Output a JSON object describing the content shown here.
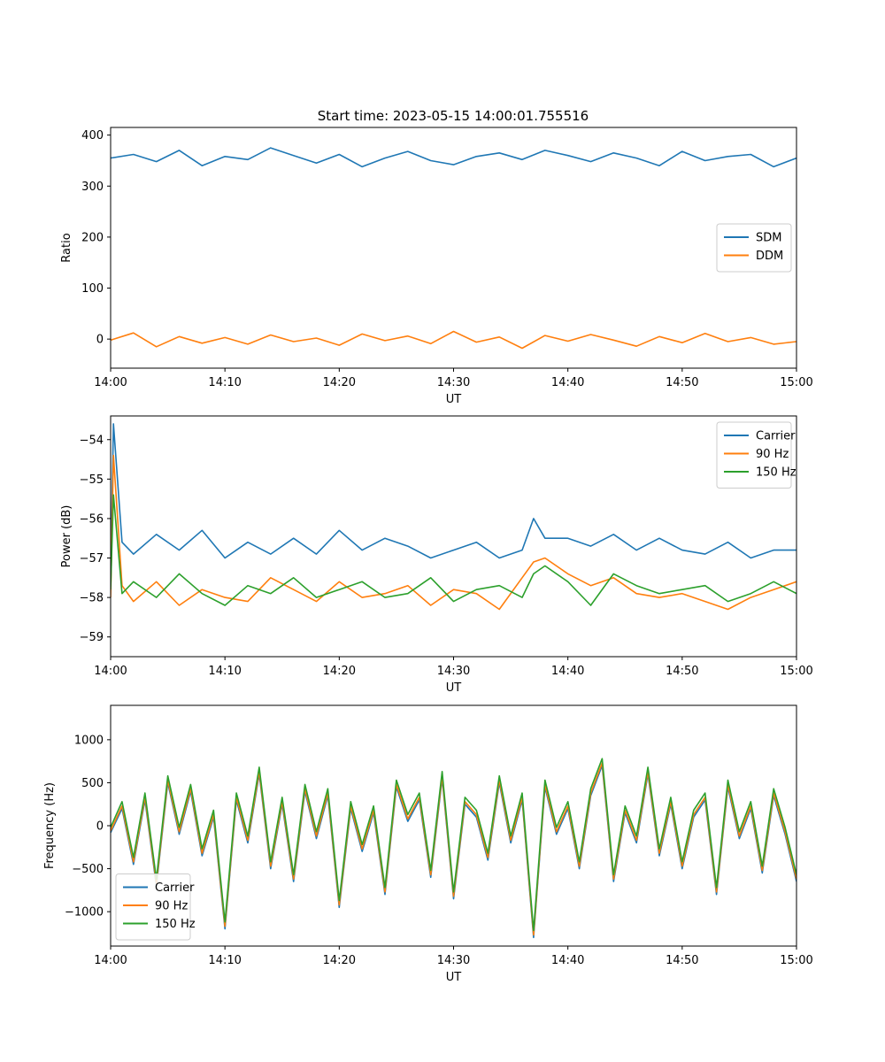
{
  "figure_title": "Start time: 2023-05-15 14:00:01.755516",
  "chart_data": [
    {
      "type": "line",
      "xlabel": "UT",
      "ylabel": "Ratio",
      "xlim": [
        "14:00",
        "15:00"
      ],
      "xticks": [
        "14:00",
        "14:10",
        "14:20",
        "14:30",
        "14:40",
        "14:50",
        "15:00"
      ],
      "ylim": [
        -57,
        415
      ],
      "yticks": [
        0,
        100,
        200,
        300,
        400
      ],
      "grid": false,
      "legend_position": "center-right",
      "series": [
        {
          "name": "SDM",
          "color": "#1f77b4",
          "x": [
            "14:00",
            "14:02",
            "14:04",
            "14:06",
            "14:08",
            "14:10",
            "14:12",
            "14:14",
            "14:16",
            "14:18",
            "14:20",
            "14:22",
            "14:24",
            "14:26",
            "14:28",
            "14:30",
            "14:32",
            "14:34",
            "14:36",
            "14:38",
            "14:40",
            "14:42",
            "14:44",
            "14:46",
            "14:48",
            "14:50",
            "14:52",
            "14:54",
            "14:56",
            "14:58",
            "15:00"
          ],
          "values": [
            355,
            362,
            348,
            370,
            340,
            358,
            352,
            375,
            360,
            345,
            362,
            338,
            355,
            368,
            350,
            342,
            358,
            365,
            352,
            370,
            360,
            348,
            365,
            355,
            340,
            368,
            350,
            358,
            362,
            338,
            355
          ]
        },
        {
          "name": "DDM",
          "color": "#ff7f0e",
          "x": [
            "14:00",
            "14:02",
            "14:04",
            "14:06",
            "14:08",
            "14:10",
            "14:12",
            "14:14",
            "14:16",
            "14:18",
            "14:20",
            "14:22",
            "14:24",
            "14:26",
            "14:28",
            "14:30",
            "14:32",
            "14:34",
            "14:36",
            "14:38",
            "14:40",
            "14:42",
            "14:44",
            "14:46",
            "14:48",
            "14:50",
            "14:52",
            "14:54",
            "14:56",
            "14:58",
            "15:00"
          ],
          "values": [
            -2,
            12,
            -15,
            5,
            -8,
            3,
            -10,
            8,
            -5,
            2,
            -12,
            10,
            -3,
            6,
            -9,
            15,
            -6,
            4,
            -18,
            7,
            -4,
            9,
            -2,
            -14,
            5,
            -7,
            11,
            -5,
            3,
            -10,
            -5
          ]
        }
      ]
    },
    {
      "type": "line",
      "xlabel": "UT",
      "ylabel": "Power (dB)",
      "xlim": [
        "14:00",
        "15:00"
      ],
      "xticks": [
        "14:00",
        "14:10",
        "14:20",
        "14:30",
        "14:40",
        "14:50",
        "15:00"
      ],
      "ylim": [
        -59.5,
        -53.4
      ],
      "yticks": [
        -59,
        -58,
        -57,
        -56,
        -55,
        -54
      ],
      "grid": false,
      "legend_position": "top-right",
      "series": [
        {
          "name": "Carrier",
          "color": "#1f77b4",
          "x": [
            "14:00",
            "14:00:15",
            "14:01",
            "14:02",
            "14:04",
            "14:06",
            "14:08",
            "14:10",
            "14:12",
            "14:14",
            "14:16",
            "14:18",
            "14:20",
            "14:22",
            "14:24",
            "14:26",
            "14:28",
            "14:30",
            "14:32",
            "14:34",
            "14:36",
            "14:37",
            "14:38",
            "14:40",
            "14:42",
            "14:44",
            "14:46",
            "14:48",
            "14:50",
            "14:52",
            "14:54",
            "14:56",
            "14:58",
            "15:00"
          ],
          "values": [
            -57.5,
            -53.6,
            -56.6,
            -56.9,
            -56.4,
            -56.8,
            -56.3,
            -57.0,
            -56.6,
            -56.9,
            -56.5,
            -56.9,
            -56.3,
            -56.8,
            -56.5,
            -56.7,
            -57.0,
            -56.8,
            -56.6,
            -57.0,
            -56.8,
            -56.0,
            -56.5,
            -56.5,
            -56.7,
            -56.4,
            -56.8,
            -56.5,
            -56.8,
            -56.9,
            -56.6,
            -57.0,
            -56.8,
            -56.8
          ]
        },
        {
          "name": "90 Hz",
          "color": "#ff7f0e",
          "x": [
            "14:00",
            "14:00:15",
            "14:01",
            "14:02",
            "14:04",
            "14:06",
            "14:08",
            "14:10",
            "14:12",
            "14:14",
            "14:16",
            "14:18",
            "14:20",
            "14:22",
            "14:24",
            "14:26",
            "14:28",
            "14:30",
            "14:32",
            "14:34",
            "14:36",
            "14:37",
            "14:38",
            "14:40",
            "14:42",
            "14:44",
            "14:46",
            "14:48",
            "14:50",
            "14:52",
            "14:54",
            "14:56",
            "14:58",
            "15:00"
          ],
          "values": [
            -58.0,
            -54.4,
            -57.7,
            -58.1,
            -57.6,
            -58.2,
            -57.8,
            -58.0,
            -58.1,
            -57.5,
            -57.8,
            -58.1,
            -57.6,
            -58.0,
            -57.9,
            -57.7,
            -58.2,
            -57.8,
            -57.9,
            -58.3,
            -57.5,
            -57.1,
            -57.0,
            -57.4,
            -57.7,
            -57.5,
            -57.9,
            -58.0,
            -57.9,
            -58.1,
            -58.3,
            -58.0,
            -57.8,
            -57.6
          ]
        },
        {
          "name": "150 Hz",
          "color": "#2ca02c",
          "x": [
            "14:00",
            "14:00:15",
            "14:01",
            "14:02",
            "14:04",
            "14:06",
            "14:08",
            "14:10",
            "14:12",
            "14:14",
            "14:16",
            "14:18",
            "14:20",
            "14:22",
            "14:24",
            "14:26",
            "14:28",
            "14:30",
            "14:32",
            "14:34",
            "14:36",
            "14:37",
            "14:38",
            "14:40",
            "14:42",
            "14:44",
            "14:46",
            "14:48",
            "14:50",
            "14:52",
            "14:54",
            "14:56",
            "14:58",
            "15:00"
          ],
          "values": [
            -57.8,
            -55.4,
            -57.9,
            -57.6,
            -58.0,
            -57.4,
            -57.9,
            -58.2,
            -57.7,
            -57.9,
            -57.5,
            -58.0,
            -57.8,
            -57.6,
            -58.0,
            -57.9,
            -57.5,
            -58.1,
            -57.8,
            -57.7,
            -58.0,
            -57.4,
            -57.2,
            -57.6,
            -58.2,
            -57.4,
            -57.7,
            -57.9,
            -57.8,
            -57.7,
            -58.1,
            -57.9,
            -57.6,
            -57.9
          ]
        }
      ]
    },
    {
      "type": "line",
      "xlabel": "UT",
      "ylabel": "Frequency (Hz)",
      "xlim": [
        "14:00",
        "15:00"
      ],
      "xticks": [
        "14:00",
        "14:10",
        "14:20",
        "14:30",
        "14:40",
        "14:50",
        "15:00"
      ],
      "ylim": [
        -1400,
        1400
      ],
      "yticks": [
        -1000,
        -500,
        0,
        500,
        1000
      ],
      "grid": false,
      "legend_position": "bottom-left",
      "series": [
        {
          "name": "Carrier",
          "color": "#1f77b4",
          "x": [
            "14:00",
            "14:01",
            "14:02",
            "14:03",
            "14:04",
            "14:05",
            "14:06",
            "14:07",
            "14:08",
            "14:09",
            "14:10",
            "14:11",
            "14:12",
            "14:13",
            "14:14",
            "14:15",
            "14:16",
            "14:17",
            "14:18",
            "14:19",
            "14:20",
            "14:21",
            "14:22",
            "14:23",
            "14:24",
            "14:25",
            "14:26",
            "14:27",
            "14:28",
            "14:29",
            "14:30",
            "14:31",
            "14:32",
            "14:33",
            "14:34",
            "14:35",
            "14:36",
            "14:37",
            "14:38",
            "14:39",
            "14:40",
            "14:41",
            "14:42",
            "14:43",
            "14:44",
            "14:45",
            "14:46",
            "14:47",
            "14:48",
            "14:49",
            "14:50",
            "14:51",
            "14:52",
            "14:53",
            "14:54",
            "14:55",
            "14:56",
            "14:57",
            "14:58",
            "14:59",
            "15:00"
          ],
          "values": [
            -80,
            200,
            -450,
            300,
            -700,
            500,
            -100,
            400,
            -350,
            100,
            -1200,
            300,
            -200,
            600,
            -500,
            250,
            -650,
            400,
            -150,
            350,
            -950,
            200,
            -300,
            150,
            -800,
            450,
            50,
            300,
            -600,
            550,
            -850,
            250,
            100,
            -400,
            500,
            -200,
            300,
            -1300,
            450,
            -100,
            200,
            -500,
            350,
            700,
            -650,
            150,
            -200,
            600,
            -350,
            250,
            -500,
            100,
            300,
            -800,
            450,
            -150,
            200,
            -550,
            350,
            -100,
            -650
          ]
        },
        {
          "name": "90 Hz",
          "color": "#ff7f0e",
          "x": [
            "14:00",
            "14:01",
            "14:02",
            "14:03",
            "14:04",
            "14:05",
            "14:06",
            "14:07",
            "14:08",
            "14:09",
            "14:10",
            "14:11",
            "14:12",
            "14:13",
            "14:14",
            "14:15",
            "14:16",
            "14:17",
            "14:18",
            "14:19",
            "14:20",
            "14:21",
            "14:22",
            "14:23",
            "14:24",
            "14:25",
            "14:26",
            "14:27",
            "14:28",
            "14:29",
            "14:30",
            "14:31",
            "14:32",
            "14:33",
            "14:34",
            "14:35",
            "14:36",
            "14:37",
            "14:38",
            "14:39",
            "14:40",
            "14:41",
            "14:42",
            "14:43",
            "14:44",
            "14:45",
            "14:46",
            "14:47",
            "14:48",
            "14:49",
            "14:50",
            "14:51",
            "14:52",
            "14:53",
            "14:54",
            "14:55",
            "14:56",
            "14:57",
            "14:58",
            "14:59",
            "15:00"
          ],
          "values": [
            -60,
            230,
            -420,
            330,
            -670,
            530,
            -70,
            430,
            -320,
            130,
            -1170,
            330,
            -170,
            630,
            -470,
            280,
            -620,
            430,
            -120,
            380,
            -920,
            230,
            -270,
            180,
            -770,
            480,
            80,
            330,
            -570,
            580,
            -820,
            280,
            130,
            -370,
            530,
            -170,
            330,
            -1270,
            480,
            -70,
            230,
            -470,
            380,
            730,
            -620,
            180,
            -170,
            630,
            -320,
            280,
            -470,
            130,
            330,
            -770,
            480,
            -120,
            230,
            -520,
            380,
            -70,
            -620
          ]
        },
        {
          "name": "150 Hz",
          "color": "#2ca02c",
          "x": [
            "14:00",
            "14:01",
            "14:02",
            "14:03",
            "14:04",
            "14:05",
            "14:06",
            "14:07",
            "14:08",
            "14:09",
            "14:10",
            "14:11",
            "14:12",
            "14:13",
            "14:14",
            "14:15",
            "14:16",
            "14:17",
            "14:18",
            "14:19",
            "14:20",
            "14:21",
            "14:22",
            "14:23",
            "14:24",
            "14:25",
            "14:26",
            "14:27",
            "14:28",
            "14:29",
            "14:30",
            "14:31",
            "14:32",
            "14:33",
            "14:34",
            "14:35",
            "14:36",
            "14:37",
            "14:38",
            "14:39",
            "14:40",
            "14:41",
            "14:42",
            "14:43",
            "14:44",
            "14:45",
            "14:46",
            "14:47",
            "14:48",
            "14:49",
            "14:50",
            "14:51",
            "14:52",
            "14:53",
            "14:54",
            "14:55",
            "14:56",
            "14:57",
            "14:58",
            "14:59",
            "15:00"
          ],
          "values": [
            -20,
            280,
            -370,
            380,
            -620,
            580,
            -20,
            480,
            -270,
            180,
            -1120,
            380,
            -120,
            680,
            -420,
            330,
            -570,
            480,
            -70,
            430,
            -870,
            280,
            -220,
            230,
            -720,
            530,
            130,
            380,
            -520,
            630,
            -770,
            330,
            180,
            -320,
            580,
            -120,
            380,
            -1220,
            530,
            -20,
            280,
            -420,
            430,
            780,
            -570,
            230,
            -120,
            680,
            -270,
            330,
            -420,
            180,
            380,
            -720,
            530,
            -70,
            280,
            -470,
            430,
            -20,
            -570
          ]
        }
      ]
    }
  ]
}
